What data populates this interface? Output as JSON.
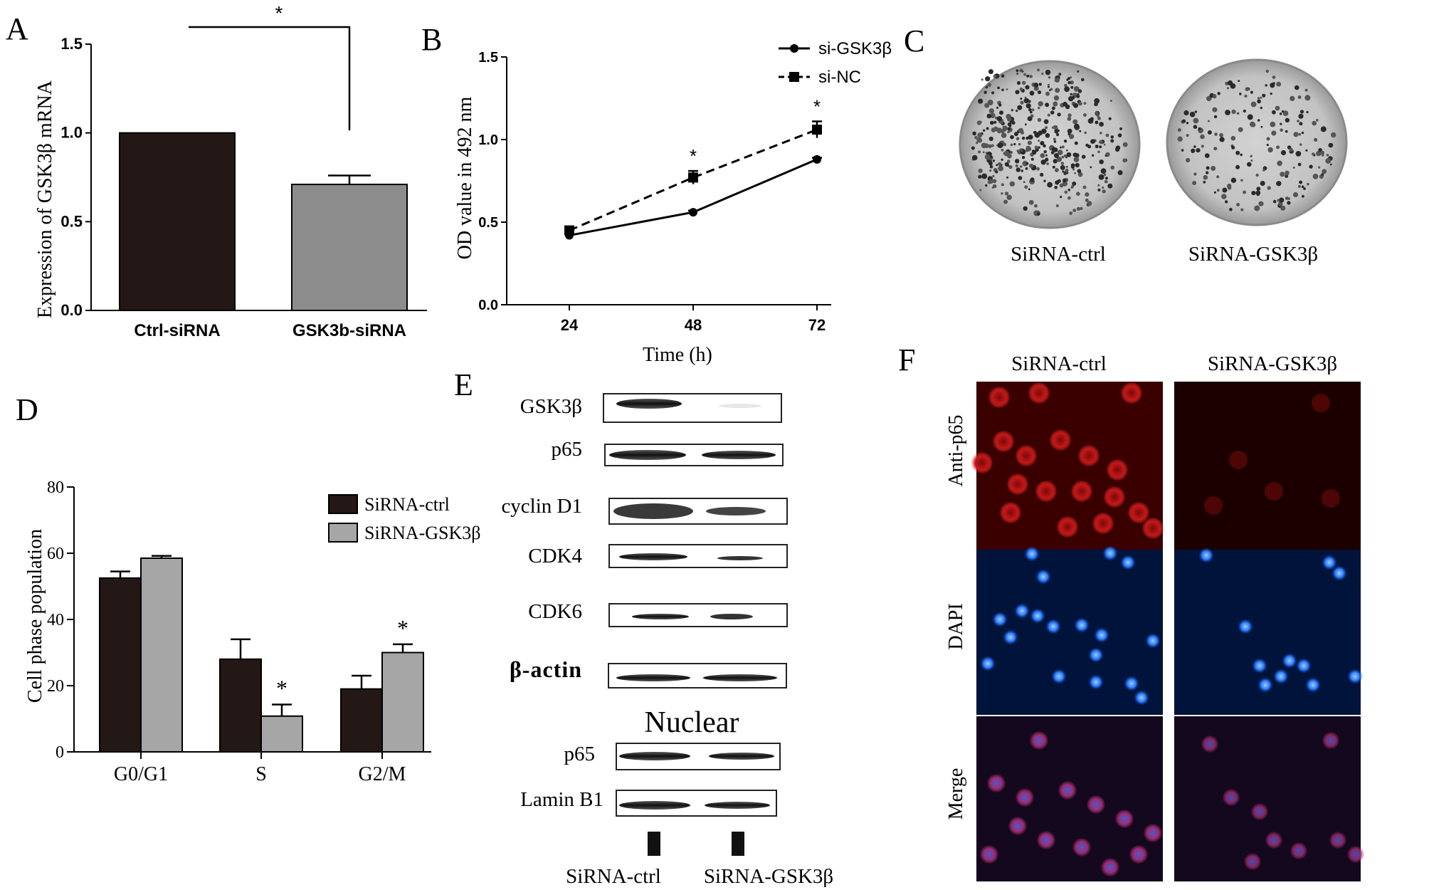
{
  "panels": {
    "A": {
      "letter": "A"
    },
    "B": {
      "letter": "B"
    },
    "C": {
      "letter": "C"
    },
    "D": {
      "letter": "D"
    },
    "E": {
      "letter": "E"
    },
    "F": {
      "letter": "F"
    }
  },
  "chart_data": [
    {
      "id": "A",
      "type": "bar",
      "categories": [
        "Ctrl-siRNA",
        "GSK3b-siRNA"
      ],
      "values": [
        1.0,
        0.71
      ],
      "errors": [
        0.0,
        0.05
      ],
      "ylabel": "Expression of GSK3β mRNA",
      "ylim": [
        0,
        1.5
      ],
      "yticks": [
        "0.0",
        "0.5",
        "1.0",
        "1.5"
      ],
      "significance": "*",
      "colors": [
        "#231815",
        "#8c8c8c"
      ]
    },
    {
      "id": "B",
      "type": "line",
      "x": [
        24,
        48,
        72
      ],
      "xticks": [
        "24",
        "48",
        "72"
      ],
      "xlabel": "Time (h)",
      "ylabel": "OD value in 492 nm",
      "ylim": [
        0,
        1.5
      ],
      "yticks": [
        "0.0",
        "0.5",
        "1.0",
        "1.5"
      ],
      "series": [
        {
          "name": "si-GSK3β",
          "values": [
            0.42,
            0.56,
            0.88
          ],
          "errors": [
            0.01,
            0.01,
            0.01
          ],
          "style": "solid",
          "marker": "circle"
        },
        {
          "name": "si-NC",
          "values": [
            0.45,
            0.77,
            1.06
          ],
          "errors": [
            0.02,
            0.04,
            0.05
          ],
          "style": "dashed",
          "marker": "square"
        }
      ],
      "significance": [
        "",
        "*",
        "*"
      ]
    },
    {
      "id": "D",
      "type": "bar",
      "categories": [
        "G0/G1",
        "S",
        "G2/M"
      ],
      "ylabel": "Cell phase population",
      "ylim": [
        0,
        80
      ],
      "yticks": [
        "0",
        "20",
        "40",
        "60",
        "80"
      ],
      "series": [
        {
          "name": "SiRNA-ctrl",
          "values": [
            52.5,
            28,
            19
          ],
          "errors": [
            2,
            6,
            4
          ],
          "color": "#231815"
        },
        {
          "name": "SiRNA-GSK3β",
          "values": [
            58.5,
            10.8,
            30
          ],
          "errors": [
            0.7,
            3.5,
            2.5
          ],
          "color": "#a6a6a6"
        }
      ],
      "significance": [
        "",
        "*",
        "*"
      ]
    }
  ],
  "panelC": {
    "labels": [
      "SiRNA-ctrl",
      "SiRNA-GSK3β"
    ]
  },
  "panelE": {
    "rows": [
      "GSK3β",
      "p65",
      "cyclin D1",
      "CDK4",
      "CDK6",
      "β-actin"
    ],
    "nuclear_title": "Nuclear",
    "nuclear_rows": [
      "p65",
      "Lamin B1"
    ],
    "lanes": [
      "SiRNA-ctrl",
      "SiRNA-GSK3β"
    ]
  },
  "panelF": {
    "columns": [
      "SiRNA-ctrl",
      "SiRNA-GSK3β"
    ],
    "rows": [
      "Anti-p65",
      "DAPI",
      "Merge"
    ]
  }
}
